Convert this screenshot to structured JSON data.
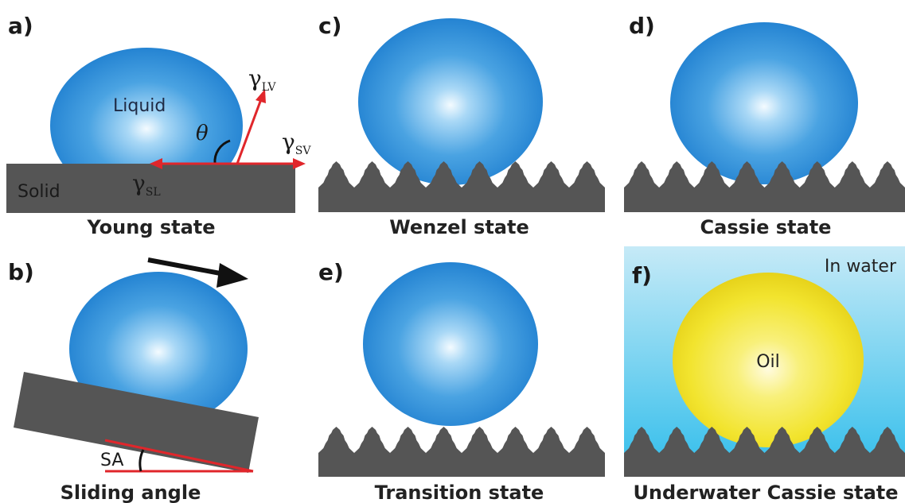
{
  "panels": {
    "a": {
      "label": "a)",
      "caption": "Young state",
      "liquid": "Liquid",
      "solid": "Solid",
      "gamma": "γ",
      "lv_sub": "LV",
      "sv_sub": "SV",
      "sl_sub": "SL",
      "theta": "θ"
    },
    "b": {
      "label": "b)",
      "caption": "Sliding angle",
      "angle": "SA"
    },
    "c": {
      "label": "c)",
      "caption": "Wenzel state"
    },
    "d": {
      "label": "d)",
      "caption": "Cassie state"
    },
    "e": {
      "label": "e)",
      "caption": "Transition state"
    },
    "f": {
      "label": "f)",
      "caption": "Underwater Cassie state",
      "oil": "Oil",
      "medium": "In water"
    }
  },
  "colors": {
    "droplet": "#2f8fd8",
    "droplet_highlight": "#eaf6ff",
    "oil": "#f0e226",
    "solid": "#555555",
    "vector": "#e0262b",
    "water_top": "#bfe7f5",
    "water_bottom": "#38c0ec"
  }
}
